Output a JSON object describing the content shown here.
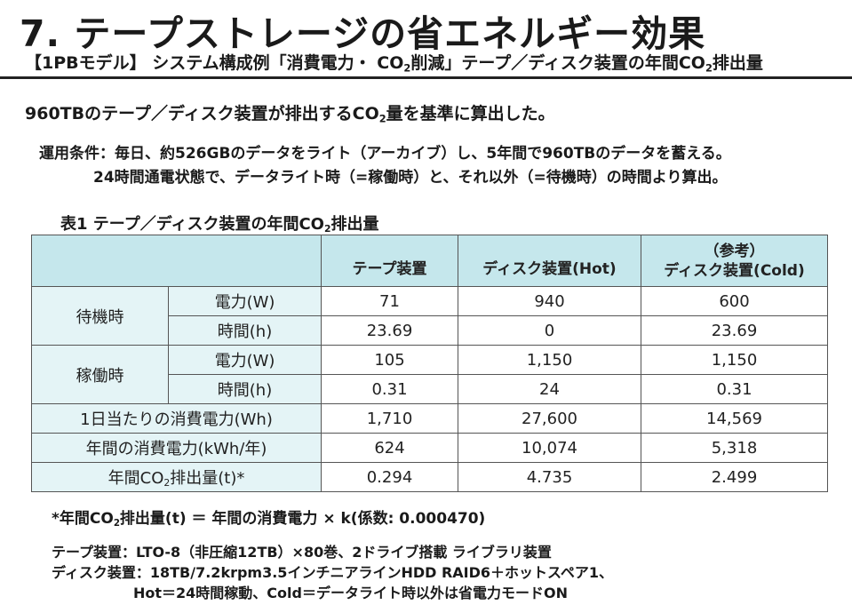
{
  "title": "7. テープストレージの省エネルギー効果",
  "subtitle": {
    "prefix": "【1PBモデル】 システム構成例「消費電力・ CO",
    "sub": "2",
    "mid": "削減」テープ／ディスク装置の年間CO",
    "sub2": "2",
    "suffix": "排出量"
  },
  "lead": {
    "prefix": "960TBのテープ／ディスク装置が排出するCO",
    "sub": "2",
    "suffix": "量を基準に算出した。"
  },
  "conditions": {
    "line1": "運用条件：毎日、約526GBのデータをライト（アーカイブ）し、5年間で960TBのデータを蓄える。",
    "line2": "24時間通電状態で、データライト時（=稼働時）と、それ以外（=待機時）の時間より算出。"
  },
  "table": {
    "caption_prefix": "表1  テープ／ディスク装置の年間CO",
    "caption_sub": "2",
    "caption_suffix": "排出量",
    "headers": {
      "tape": "テープ装置",
      "disk_hot": "ディスク装置(Hot)",
      "disk_cold_note": "（参考）",
      "disk_cold": "ディスク装置(Cold)"
    },
    "groups": {
      "standby": "待機時",
      "active": "稼働時"
    },
    "units": {
      "power": "電力(W)",
      "time": "時間(h)"
    },
    "rows": {
      "standby_power": [
        "71",
        "940",
        "600"
      ],
      "standby_time": [
        "23.69",
        "0",
        "23.69"
      ],
      "active_power": [
        "105",
        "1,150",
        "1,150"
      ],
      "active_time": [
        "0.31",
        "24",
        "0.31"
      ],
      "daily_label": "1日当たりの消費電力(Wh)",
      "daily": [
        "1,710",
        "27,600",
        "14,569"
      ],
      "annual_label": "年間の消費電力(kWh/年)",
      "annual": [
        "624",
        "10,074",
        "5,318"
      ],
      "co2_label_prefix": "年間CO",
      "co2_label_sub": "2",
      "co2_label_suffix": "排出量(t)*",
      "co2": [
        "0.294",
        "4.735",
        "2.499"
      ]
    }
  },
  "formula": {
    "prefix": "*年間CO",
    "sub": "2",
    "suffix": "排出量(t)  ＝  年間の消費電力  ×  k(係数: 0.000470)"
  },
  "notes": {
    "tape": "テープ装置：LTO-8（非圧縮12TB）×80巻、2ドライブ搭載  ライブラリ装置",
    "disk": "ディスク装置：18TB/7.2krpm3.5インチニアラインHDD  RAID6＋ホットスペア1、",
    "disk_mode": "Hot＝24時間稼動、Cold＝データライト時以外は省電力モードON"
  }
}
